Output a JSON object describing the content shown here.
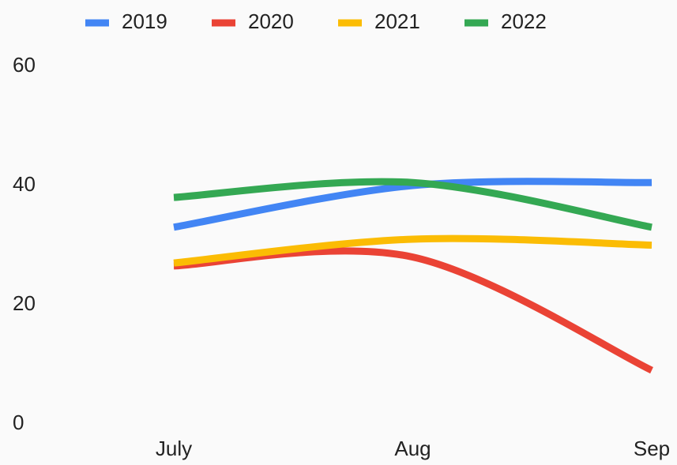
{
  "chart_data": {
    "type": "line",
    "categories": [
      "July",
      "Aug",
      "Sep"
    ],
    "series": [
      {
        "name": "2019",
        "color": "#4285f4",
        "values": [
          33,
          40,
          40.5
        ]
      },
      {
        "name": "2020",
        "color": "#ea4335",
        "values": [
          26.5,
          28,
          9
        ]
      },
      {
        "name": "2021",
        "color": "#fbbc04",
        "values": [
          27,
          31,
          30
        ]
      },
      {
        "name": "2022",
        "color": "#34a853",
        "values": [
          38,
          40.5,
          33
        ]
      }
    ],
    "ylim": [
      0,
      60
    ],
    "yticks": [
      0,
      20,
      40,
      60
    ],
    "grid": false,
    "legend": "top"
  }
}
